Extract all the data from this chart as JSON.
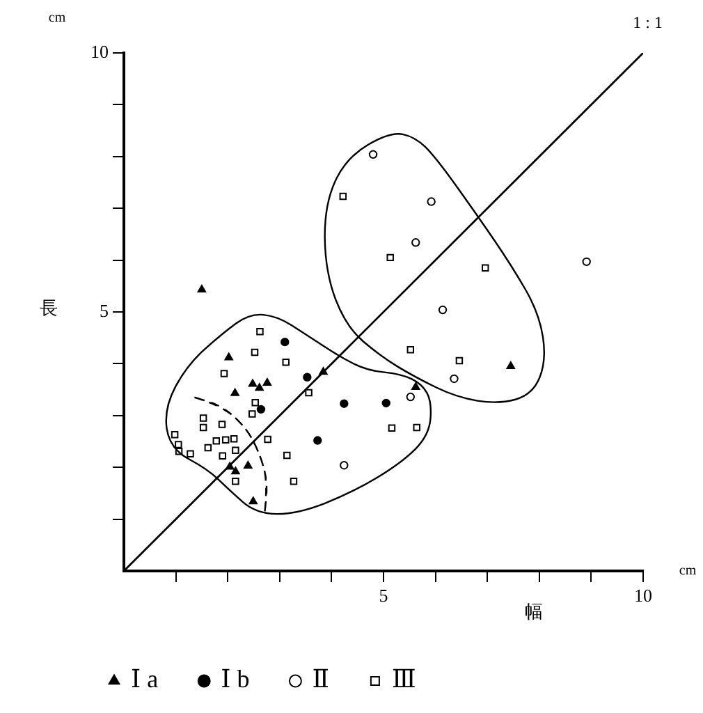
{
  "chart_data": {
    "type": "scatter",
    "xlabel": "幅",
    "ylabel": "長",
    "annotations": [
      "cm",
      "cm",
      "1 : 1"
    ],
    "xlim": [
      0,
      10
    ],
    "ylim": [
      0,
      10
    ],
    "xticks": [
      {
        "value": 1,
        "label": null
      },
      {
        "value": 2,
        "label": null
      },
      {
        "value": 3,
        "label": null
      },
      {
        "value": 4,
        "label": null
      },
      5,
      {
        "value": 6,
        "label": null
      },
      {
        "value": 7,
        "label": null
      },
      {
        "value": 8,
        "label": null
      },
      {
        "value": 9,
        "label": null
      },
      10
    ],
    "yticks": [
      {
        "value": 1,
        "label": null
      },
      {
        "value": 2,
        "label": null
      },
      {
        "value": 3,
        "label": null
      },
      {
        "value": 4,
        "label": null
      },
      5,
      {
        "value": 6,
        "label": null
      },
      {
        "value": 7,
        "label": null
      },
      {
        "value": 8,
        "label": null
      },
      {
        "value": 9,
        "label": null
      },
      10
    ],
    "grid": false,
    "legend": "bottom",
    "series": [
      {
        "name": "Ⅰ a",
        "color": "#000000",
        "marker": "triangle",
        "x": [
          2.02,
          2.48,
          2.61,
          2.76,
          2.14,
          2.04,
          2.15,
          2.39,
          2.49,
          1.5,
          3.84,
          7.45,
          5.62
        ],
        "values": [
          4.12,
          3.61,
          3.53,
          3.63,
          3.43,
          2.01,
          1.92,
          2.03,
          1.34,
          5.43,
          3.84,
          3.95,
          3.55
        ]
      },
      {
        "name": "Ⅰ b",
        "color": "#000000",
        "marker": "circle",
        "x": [
          3.1,
          3.53,
          2.64,
          4.24,
          5.05,
          3.73
        ],
        "values": [
          4.42,
          3.74,
          3.12,
          3.23,
          3.24,
          2.52
        ]
      },
      {
        "name": "Ⅱ",
        "color": "#000000",
        "marker": "circle-open",
        "x": [
          4.8,
          5.92,
          5.62,
          8.91,
          6.14,
          6.36,
          5.52,
          4.24
        ],
        "values": [
          8.04,
          7.13,
          6.34,
          5.97,
          5.04,
          3.71,
          3.36,
          2.04
        ]
      },
      {
        "name": "Ⅲ",
        "color": "#000000",
        "marker": "square-open",
        "x": [
          2.62,
          2.52,
          3.12,
          1.93,
          3.56,
          2.53,
          2.47,
          1.53,
          1.53,
          1.89,
          0.98,
          1.05,
          1.06,
          1.28,
          1.62,
          1.78,
          1.96,
          2.12,
          2.15,
          1.9,
          2.77,
          3.14,
          2.15,
          3.27,
          5.52,
          6.46,
          5.16,
          5.64,
          4.22,
          5.13,
          6.96
        ],
        "values": [
          4.62,
          4.22,
          4.03,
          3.81,
          3.44,
          3.25,
          3.03,
          2.95,
          2.77,
          2.83,
          2.63,
          2.44,
          2.31,
          2.26,
          2.38,
          2.51,
          2.53,
          2.55,
          2.33,
          2.22,
          2.54,
          2.23,
          1.73,
          1.73,
          4.27,
          4.06,
          2.76,
          2.77,
          7.23,
          6.05,
          5.85
        ]
      },
      {
        "type": "line",
        "color": "#000000",
        "marker": "none",
        "x": [
          0,
          10
        ],
        "values": [
          0,
          10
        ]
      }
    ]
  }
}
